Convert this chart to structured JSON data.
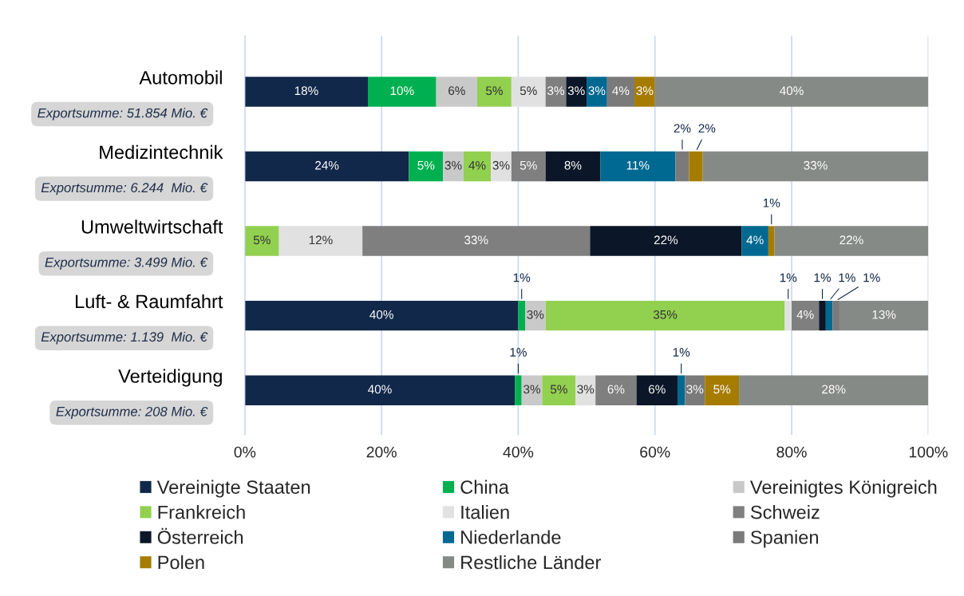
{
  "chart_data": {
    "type": "bar",
    "orientation": "horizontal",
    "stacked": true,
    "categories": [
      "Automobil",
      "Medizintechnik",
      "Umweltwirtschaft",
      "Luft- & Raumfahrt",
      "Verteidigung"
    ],
    "series": [
      {
        "name": "Vereinigte Staaten",
        "color": "#12284a",
        "values": [
          18,
          24,
          null,
          40,
          39.5
        ],
        "value_labels": [
          "18%",
          "24%",
          null,
          "40%",
          "40%"
        ]
      },
      {
        "name": "China",
        "color": "#00b050",
        "values": [
          10,
          5,
          null,
          1,
          1.0
        ],
        "value_labels": [
          "10%",
          "5%",
          null,
          "1%",
          "1%"
        ]
      },
      {
        "name": "Vereinigtes Königreich",
        "color": "#c9c9c9",
        "values": [
          6,
          3,
          null,
          3,
          3.0
        ],
        "value_labels": [
          "6%",
          "3%",
          null,
          "3%",
          "3%"
        ]
      },
      {
        "name": "Frankreich",
        "color": "#92d050",
        "values": [
          5,
          4,
          5.0,
          35,
          4.9
        ],
        "value_labels": [
          "5%",
          "4%",
          "5%",
          "35%",
          "5%"
        ]
      },
      {
        "name": "Italien",
        "color": "#e1e1e1",
        "values": [
          5,
          3,
          12.2,
          1,
          2.9
        ],
        "value_labels": [
          "5%",
          "3%",
          "12%",
          "1%",
          "3%"
        ]
      },
      {
        "name": "Schweiz",
        "color": "#7f7f7f",
        "values": [
          3,
          5,
          33.3,
          4,
          6.0
        ],
        "value_labels": [
          "3%",
          "5%",
          "33%",
          "4%",
          "6%"
        ]
      },
      {
        "name": "Österreich",
        "color": "#0b1628",
        "values": [
          3,
          8,
          22.2,
          1,
          6.0
        ],
        "value_labels": [
          "3%",
          "8%",
          "22%",
          "1%",
          "6%"
        ]
      },
      {
        "name": "Niederlande",
        "color": "#006991",
        "values": [
          3,
          11,
          3.9,
          1,
          1.1
        ],
        "value_labels": [
          "3%",
          "11%",
          "4%",
          "1%",
          "1%"
        ]
      },
      {
        "name": "Spanien",
        "color": "#7a7a7a",
        "values": [
          4,
          2,
          null,
          1,
          2.9
        ],
        "value_labels": [
          "4%",
          "2%",
          null,
          "1%",
          "3%"
        ]
      },
      {
        "name": "Polen",
        "color": "#a67c00",
        "values": [
          3,
          2,
          0.9,
          null,
          5.0
        ],
        "value_labels": [
          "3%",
          "2%",
          "1%",
          null,
          "5%"
        ]
      },
      {
        "name": "Restliche Länder",
        "color": "#868a86",
        "values": [
          40,
          33,
          22.5,
          13,
          27.7
        ],
        "value_labels": [
          "40%",
          "33%",
          "22%",
          "13%",
          "28%"
        ]
      }
    ],
    "xlim": [
      0,
      100
    ],
    "xticks": [
      {
        "value": 0,
        "label": "0%"
      },
      {
        "value": 20,
        "label": "20%"
      },
      {
        "value": 40,
        "label": "40%"
      },
      {
        "value": 60,
        "label": "60%"
      },
      {
        "value": 80,
        "label": "80%"
      },
      {
        "value": 100,
        "label": "100%"
      }
    ],
    "grid": "x",
    "legend": "bottom",
    "annotations": [
      "Exportsumme: 51.854 Mio. €",
      "Exportsumme: 6.244  Mio. €",
      "Exportsumme: 3.499 Mio. €",
      "Exportsumme: 1.139  Mio. €",
      "Exportsumme: 208 Mio. €"
    ]
  }
}
